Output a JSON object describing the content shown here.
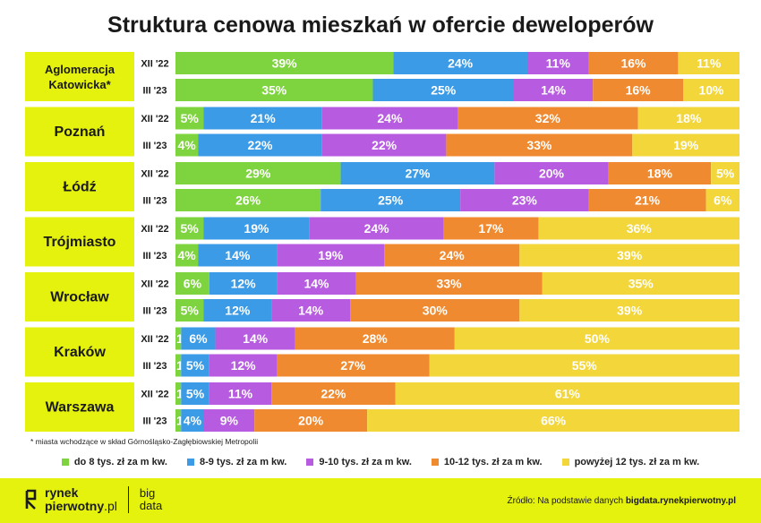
{
  "title": "Struktura cenowa mieszkań w ofercie deweloperów",
  "footnote": "* miasta wchodzące w skład Górnośląsko-Zagłębiowskiej Metropolii",
  "source_prefix": "Źródło: Na podstawie danych ",
  "source_link": "bigdata.rynekpierwotny.pl",
  "brand": {
    "line1": "rynek",
    "line2": "pierwotny",
    "tld": ".pl",
    "sub1": "big",
    "sub2": "data"
  },
  "colors": {
    "accent": "#e5f20d",
    "series": [
      "#7ed43e",
      "#3b9be6",
      "#b75be0",
      "#f08a30",
      "#f2d63a"
    ]
  },
  "chart_data": {
    "type": "bar",
    "stacked": true,
    "orientation": "horizontal",
    "title": "Struktura cenowa mieszkań w ofercie deweloperów",
    "legend_position": "bottom",
    "series_names": [
      "do 8 tys. zł za m kw.",
      "8-9 tys. zł za m kw.",
      "9-10 tys. zł za m kw.",
      "10-12 tys. zł za m kw.",
      "powyżej 12 tys. zł za m kw."
    ],
    "groups": [
      {
        "name": [
          "Aglomeracja",
          "Katowicka*"
        ],
        "rows": [
          {
            "period": "XII '22",
            "values": [
              39,
              24,
              11,
              16,
              11
            ]
          },
          {
            "period": "III '23",
            "values": [
              35,
              25,
              14,
              16,
              10
            ]
          }
        ]
      },
      {
        "name": [
          "Poznań"
        ],
        "rows": [
          {
            "period": "XII '22",
            "values": [
              5,
              21,
              24,
              32,
              18
            ]
          },
          {
            "period": "III '23",
            "values": [
              4,
              22,
              22,
              33,
              19
            ]
          }
        ]
      },
      {
        "name": [
          "Łódź"
        ],
        "rows": [
          {
            "period": "XII '22",
            "values": [
              29,
              27,
              20,
              18,
              5
            ]
          },
          {
            "period": "III '23",
            "values": [
              26,
              25,
              23,
              21,
              6
            ]
          }
        ]
      },
      {
        "name": [
          "Trójmiasto"
        ],
        "rows": [
          {
            "period": "XII '22",
            "values": [
              5,
              19,
              24,
              17,
              36
            ]
          },
          {
            "period": "III '23",
            "values": [
              4,
              14,
              19,
              24,
              39
            ]
          }
        ]
      },
      {
        "name": [
          "Wrocław"
        ],
        "rows": [
          {
            "period": "XII '22",
            "values": [
              6,
              12,
              14,
              33,
              35
            ]
          },
          {
            "period": "III '23",
            "values": [
              5,
              12,
              14,
              30,
              39
            ]
          }
        ]
      },
      {
        "name": [
          "Kraków"
        ],
        "rows": [
          {
            "period": "XII '22",
            "values": [
              1,
              6,
              14,
              28,
              50
            ]
          },
          {
            "period": "III '23",
            "values": [
              1,
              5,
              12,
              27,
              55
            ]
          }
        ]
      },
      {
        "name": [
          "Warszawa"
        ],
        "rows": [
          {
            "period": "XII '22",
            "values": [
              1,
              5,
              11,
              22,
              61
            ]
          },
          {
            "period": "III '23",
            "values": [
              1,
              4,
              9,
              20,
              66
            ]
          }
        ]
      }
    ]
  }
}
